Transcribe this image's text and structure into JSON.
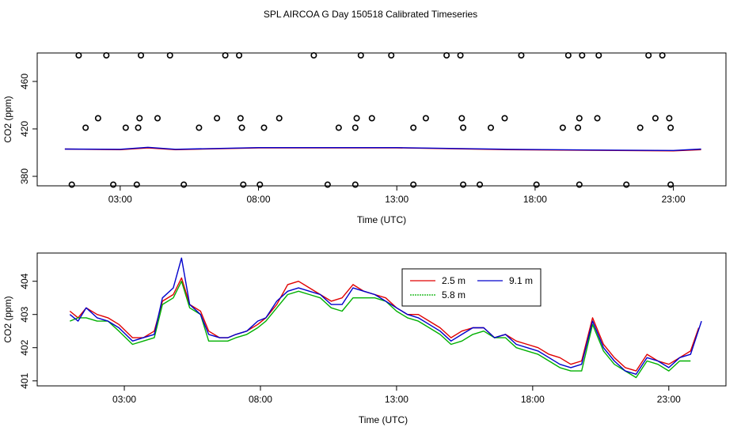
{
  "title": "SPL AIRCOA G  Day 150518  Calibrated Timeseries",
  "colors": {
    "2.5 m": "#e00000",
    "5.8 m": "#00b000",
    "9.1 m": "#0000cc",
    "axis": "#000000"
  },
  "chart_data": [
    {
      "type": "line",
      "id": "top",
      "xlabel": "Time (UTC)",
      "ylabel": "CO2 (ppm)",
      "xlim": [
        0.0,
        24.9
      ],
      "ylim": [
        372,
        484
      ],
      "x_ticks": [
        3,
        8,
        13,
        18,
        23
      ],
      "x_tick_labels": [
        "03:00",
        "08:00",
        "13:00",
        "18:00",
        "23:00"
      ],
      "y_ticks": [
        380,
        420,
        460
      ],
      "y_tick_labels": [
        "380",
        "420",
        "460"
      ],
      "line_series": [
        {
          "name": "",
          "color_key": "2.5 m",
          "x": [
            1,
            3,
            4,
            5,
            8,
            13,
            17,
            20,
            23,
            24
          ],
          "values": [
            403,
            402.5,
            404,
            402.5,
            404,
            404,
            402.5,
            402,
            401.5,
            402.5
          ]
        },
        {
          "name": "",
          "color_key": "9.1 m",
          "x": [
            1,
            3,
            4,
            5,
            8,
            13,
            17,
            20,
            23,
            24
          ],
          "values": [
            403,
            402.8,
            404.5,
            402.8,
            404.2,
            404.2,
            402.8,
            402.2,
            401.8,
            403
          ]
        }
      ],
      "points": {
        "x": [
          1.5,
          2.5,
          3.75,
          4.8,
          6.8,
          7.3,
          10.0,
          11.7,
          12.8,
          14.8,
          15.3,
          17.5,
          19.2,
          20.3,
          22.1,
          22.6,
          1.75,
          2.2,
          3.2,
          3.65,
          3.7,
          4.35,
          5.85,
          6.5,
          7.35,
          7.4,
          8.2,
          8.75,
          10.9,
          11.5,
          11.55,
          12.1,
          13.6,
          14.05,
          15.35,
          15.4,
          16.4,
          16.9,
          19.0,
          19.55,
          19.6,
          19.7,
          20.25,
          21.8,
          22.35,
          22.85,
          22.9,
          1.25,
          2.75,
          3.6,
          5.3,
          7.45,
          8.05,
          10.5,
          11.5,
          13.6,
          15.4,
          16.0,
          18.05,
          19.6,
          21.3,
          22.9
        ],
        "y": [
          482,
          482,
          482,
          482,
          482,
          482,
          482,
          482,
          482,
          482,
          482,
          482,
          482,
          482,
          482,
          482,
          421,
          429,
          421,
          421,
          429,
          429,
          421,
          429,
          429,
          421,
          421,
          429,
          421,
          421,
          429,
          429,
          421,
          429,
          429,
          421,
          421,
          429,
          421,
          421,
          429,
          482,
          429,
          421,
          429,
          429,
          421,
          373,
          373,
          373,
          373,
          373,
          373,
          373,
          373,
          373,
          373,
          373,
          373,
          373,
          373,
          373
        ]
      }
    },
    {
      "type": "line",
      "id": "bottom",
      "xlabel": "Time (UTC)",
      "ylabel": "CO2 (ppm)",
      "xlim": [
        -0.2,
        25.1
      ],
      "ylim": [
        400.85,
        404.85
      ],
      "x_ticks": [
        3,
        8,
        13,
        18,
        23
      ],
      "x_tick_labels": [
        "03:00",
        "08:00",
        "13:00",
        "18:00",
        "23:00"
      ],
      "y_ticks": [
        401,
        402,
        403,
        404
      ],
      "y_tick_labels": [
        "401",
        "402",
        "403",
        "404"
      ],
      "legend": {
        "entries": [
          "2.5 m",
          "5.8 m",
          "9.1 m"
        ],
        "placement": "top-center"
      },
      "series": [
        {
          "name": "2.5 m",
          "color_key": "2.5 m",
          "x": [
            1.0,
            1.3,
            1.6,
            2.0,
            2.4,
            2.8,
            3.3,
            3.7,
            4.1,
            4.4,
            4.8,
            5.1,
            5.4,
            5.8,
            6.1,
            6.5,
            6.8,
            7.1,
            7.5,
            7.9,
            8.2,
            8.6,
            9.0,
            9.4,
            9.8,
            10.2,
            10.6,
            11.0,
            11.4,
            11.8,
            12.2,
            12.6,
            13.0,
            13.4,
            13.8,
            14.2,
            14.6,
            15.0,
            15.4,
            15.8,
            16.2,
            16.6,
            17.0,
            17.4,
            17.8,
            18.2,
            18.6,
            19.0,
            19.4,
            19.8,
            20.2,
            20.6,
            21.0,
            21.4,
            21.8,
            22.2,
            22.6,
            23.0,
            23.4,
            23.8,
            24.1
          ],
          "values": [
            403.1,
            402.9,
            403.2,
            403.0,
            402.9,
            402.7,
            402.3,
            402.3,
            402.5,
            403.4,
            403.6,
            404.1,
            403.3,
            403.1,
            402.5,
            402.3,
            402.3,
            402.4,
            402.5,
            402.7,
            402.9,
            403.3,
            403.9,
            404.0,
            403.8,
            403.6,
            403.4,
            403.5,
            403.9,
            403.7,
            403.6,
            403.5,
            403.2,
            403.0,
            403.0,
            402.8,
            402.6,
            402.3,
            402.5,
            402.6,
            402.6,
            402.3,
            402.4,
            402.2,
            402.1,
            402.0,
            401.8,
            401.7,
            401.5,
            401.6,
            402.9,
            402.1,
            401.7,
            401.4,
            401.3,
            401.8,
            401.6,
            401.5,
            401.7,
            401.9,
            402.6
          ]
        },
        {
          "name": "5.8 m",
          "color_key": "5.8 m",
          "x": [
            1.0,
            1.3,
            1.6,
            2.0,
            2.4,
            2.8,
            3.3,
            3.7,
            4.1,
            4.4,
            4.8,
            5.1,
            5.4,
            5.8,
            6.1,
            6.5,
            6.8,
            7.1,
            7.5,
            7.9,
            8.2,
            8.6,
            9.0,
            9.4,
            9.8,
            10.2,
            10.6,
            11.0,
            11.4,
            11.8,
            12.2,
            12.6,
            13.0,
            13.4,
            13.8,
            14.2,
            14.6,
            15.0,
            15.4,
            15.8,
            16.2,
            16.6,
            17.0,
            17.4,
            17.8,
            18.2,
            18.6,
            19.0,
            19.4,
            19.8,
            20.2,
            20.6,
            21.0,
            21.4,
            21.8,
            22.2,
            22.6,
            23.0,
            23.4,
            23.8
          ],
          "values": [
            402.8,
            402.9,
            402.9,
            402.8,
            402.8,
            402.5,
            402.1,
            402.2,
            402.3,
            403.3,
            403.5,
            404.0,
            403.2,
            403.0,
            402.2,
            402.2,
            402.2,
            402.3,
            402.4,
            402.6,
            402.8,
            403.2,
            403.6,
            403.7,
            403.6,
            403.5,
            403.2,
            403.1,
            403.5,
            403.5,
            403.5,
            403.4,
            403.1,
            402.9,
            402.8,
            402.6,
            402.4,
            402.1,
            402.2,
            402.4,
            402.5,
            402.3,
            402.3,
            402.0,
            401.9,
            401.8,
            401.6,
            401.4,
            401.3,
            401.3,
            402.7,
            401.9,
            401.5,
            401.3,
            401.1,
            401.6,
            401.5,
            401.3,
            401.6,
            401.6
          ]
        },
        {
          "name": "9.1 m",
          "color_key": "9.1 m",
          "x": [
            1.0,
            1.3,
            1.6,
            2.0,
            2.4,
            2.8,
            3.3,
            3.7,
            4.1,
            4.4,
            4.8,
            5.1,
            5.4,
            5.8,
            6.1,
            6.5,
            6.8,
            7.1,
            7.5,
            7.9,
            8.2,
            8.6,
            9.0,
            9.4,
            9.8,
            10.2,
            10.6,
            11.0,
            11.4,
            11.8,
            12.2,
            12.6,
            13.0,
            13.4,
            13.8,
            14.2,
            14.6,
            15.0,
            15.4,
            15.8,
            16.2,
            16.6,
            17.0,
            17.4,
            17.8,
            18.2,
            18.6,
            19.0,
            19.4,
            19.8,
            20.2,
            20.6,
            21.0,
            21.4,
            21.8,
            22.2,
            22.6,
            23.0,
            23.4,
            23.8,
            24.2
          ],
          "values": [
            403.0,
            402.8,
            403.2,
            402.9,
            402.8,
            402.6,
            402.2,
            402.3,
            402.4,
            403.5,
            403.8,
            404.7,
            403.3,
            403.0,
            402.4,
            402.3,
            402.3,
            402.4,
            402.5,
            402.8,
            402.9,
            403.4,
            403.7,
            403.8,
            403.7,
            403.6,
            403.3,
            403.3,
            403.8,
            403.7,
            403.6,
            403.4,
            403.2,
            403.0,
            402.9,
            402.7,
            402.5,
            402.2,
            402.4,
            402.6,
            402.6,
            402.3,
            402.4,
            402.1,
            402.0,
            401.9,
            401.7,
            401.5,
            401.4,
            401.5,
            402.8,
            402.0,
            401.6,
            401.3,
            401.2,
            401.7,
            401.6,
            401.4,
            401.7,
            401.8,
            402.8
          ]
        }
      ]
    }
  ]
}
